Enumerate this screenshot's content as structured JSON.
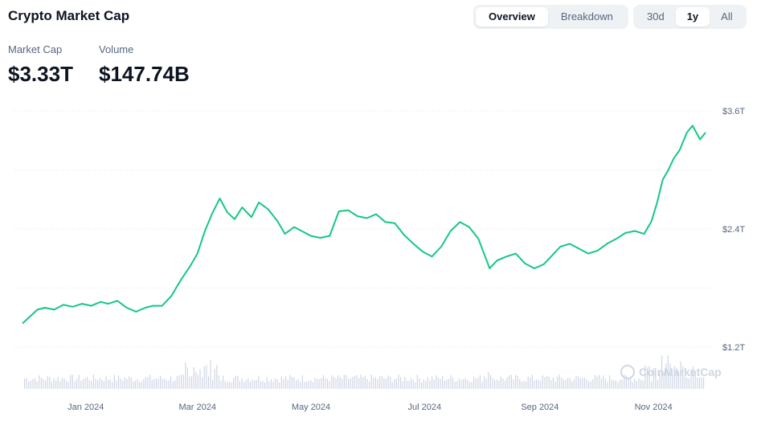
{
  "header": {
    "title": "Crypto Market Cap"
  },
  "view_tabs": [
    {
      "label": "Overview",
      "active": true
    },
    {
      "label": "Breakdown",
      "active": false
    }
  ],
  "range_tabs": [
    {
      "label": "30d",
      "active": false
    },
    {
      "label": "1y",
      "active": true
    },
    {
      "label": "All",
      "active": false
    }
  ],
  "stats": {
    "market_cap_label": "Market Cap",
    "market_cap_value": "$3.33T",
    "volume_label": "Volume",
    "volume_value": "$147.74B"
  },
  "watermark": "CoinMarketCap",
  "colors": {
    "line": "#16c784",
    "volume": "#cfd6e4",
    "grid": "#e0e3eb"
  },
  "chart_data": {
    "type": "line",
    "xlabel": "",
    "ylabel": "",
    "y_ticks": [
      {
        "value": 3.6,
        "label": "$3.6T"
      },
      {
        "value": 2.4,
        "label": "$2.4T"
      },
      {
        "value": 1.2,
        "label": "$1.2T"
      }
    ],
    "ylim": [
      1.2,
      3.6
    ],
    "x_ticks": [
      {
        "value": "2024-01-01",
        "label": "Jan 2024"
      },
      {
        "value": "2024-03-01",
        "label": "Mar 2024"
      },
      {
        "value": "2024-05-01",
        "label": "May 2024"
      },
      {
        "value": "2024-07-01",
        "label": "Jul 2024"
      },
      {
        "value": "2024-09-01",
        "label": "Sep 2024"
      },
      {
        "value": "2024-11-01",
        "label": "Nov 2024"
      }
    ],
    "xlim": [
      "2023-11-28",
      "2024-11-29"
    ],
    "series": [
      {
        "x": [
          "2023-11-28",
          "2023-12-02",
          "2023-12-06",
          "2023-12-10",
          "2023-12-15",
          "2023-12-20",
          "2023-12-25",
          "2023-12-30",
          "2024-01-04",
          "2024-01-09",
          "2024-01-13",
          "2024-01-18",
          "2024-01-23",
          "2024-01-28",
          "2024-02-02",
          "2024-02-06",
          "2024-02-11",
          "2024-02-16",
          "2024-02-21",
          "2024-02-26",
          "2024-03-01",
          "2024-03-05",
          "2024-03-09",
          "2024-03-13",
          "2024-03-17",
          "2024-03-21",
          "2024-03-25",
          "2024-03-30",
          "2024-04-03",
          "2024-04-08",
          "2024-04-13",
          "2024-04-17",
          "2024-04-22",
          "2024-04-27",
          "2024-05-01",
          "2024-05-06",
          "2024-05-11",
          "2024-05-16",
          "2024-05-21",
          "2024-05-26",
          "2024-05-31",
          "2024-06-05",
          "2024-06-10",
          "2024-06-15",
          "2024-06-20",
          "2024-06-25",
          "2024-06-30",
          "2024-07-05",
          "2024-07-10",
          "2024-07-15",
          "2024-07-20",
          "2024-07-25",
          "2024-07-30",
          "2024-08-05",
          "2024-08-09",
          "2024-08-14",
          "2024-08-19",
          "2024-08-24",
          "2024-08-29",
          "2024-09-03",
          "2024-09-07",
          "2024-09-12",
          "2024-09-17",
          "2024-09-22",
          "2024-09-27",
          "2024-10-02",
          "2024-10-07",
          "2024-10-12",
          "2024-10-17",
          "2024-10-22",
          "2024-10-27",
          "2024-10-31",
          "2024-11-03",
          "2024-11-06",
          "2024-11-09",
          "2024-11-12",
          "2024-11-15",
          "2024-11-19",
          "2024-11-22",
          "2024-11-26",
          "2024-11-29"
        ],
        "y": [
          1.44,
          1.51,
          1.58,
          1.6,
          1.58,
          1.63,
          1.61,
          1.64,
          1.62,
          1.66,
          1.64,
          1.67,
          1.6,
          1.56,
          1.6,
          1.62,
          1.62,
          1.72,
          1.88,
          2.02,
          2.15,
          2.38,
          2.56,
          2.71,
          2.57,
          2.5,
          2.62,
          2.52,
          2.67,
          2.6,
          2.48,
          2.35,
          2.42,
          2.37,
          2.33,
          2.31,
          2.33,
          2.58,
          2.59,
          2.53,
          2.51,
          2.55,
          2.47,
          2.46,
          2.34,
          2.25,
          2.17,
          2.12,
          2.22,
          2.38,
          2.47,
          2.42,
          2.3,
          2.0,
          2.08,
          2.12,
          2.15,
          2.05,
          2.0,
          2.04,
          2.12,
          2.22,
          2.25,
          2.2,
          2.15,
          2.18,
          2.25,
          2.3,
          2.36,
          2.38,
          2.35,
          2.48,
          2.67,
          2.9,
          3.0,
          3.12,
          3.2,
          3.38,
          3.45,
          3.31,
          3.38
        ]
      }
    ],
    "volume_series": {
      "name": "",
      "unit": "relative",
      "values": []
    },
    "grid": true,
    "legend": "none"
  }
}
